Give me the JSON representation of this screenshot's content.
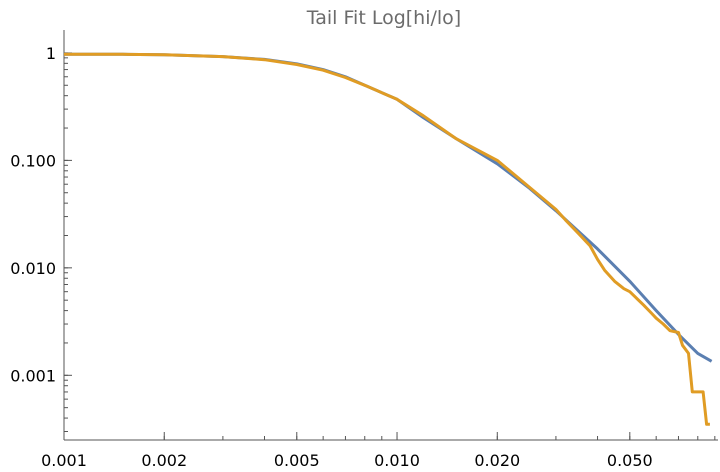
{
  "chart_data": {
    "type": "line",
    "title": "Tail Fit Log[hi/lo]",
    "xlabel": "",
    "ylabel": "",
    "x_scale": "log",
    "y_scale": "log",
    "xlim": [
      0.001,
      0.092
    ],
    "ylim": [
      0.00025,
      1.5
    ],
    "x_ticks": [
      {
        "value": 0.001,
        "label": "0.001"
      },
      {
        "value": 0.002,
        "label": "0.002"
      },
      {
        "value": 0.005,
        "label": "0.005"
      },
      {
        "value": 0.01,
        "label": "0.010"
      },
      {
        "value": 0.02,
        "label": "0.020"
      },
      {
        "value": 0.05,
        "label": "0.050"
      }
    ],
    "y_ticks": [
      {
        "value": 1,
        "label": "1"
      },
      {
        "value": 0.1,
        "label": "0.100"
      },
      {
        "value": 0.01,
        "label": "0.010"
      },
      {
        "value": 0.001,
        "label": "0.001"
      }
    ],
    "grid": false,
    "series": [
      {
        "color": "#5b7fb1",
        "x": [
          0.001,
          0.0015,
          0.002,
          0.003,
          0.004,
          0.005,
          0.006,
          0.007,
          0.008,
          0.01,
          0.012,
          0.015,
          0.02,
          0.025,
          0.03,
          0.04,
          0.05,
          0.06,
          0.07,
          0.08,
          0.088
        ],
        "y": [
          0.97,
          0.97,
          0.96,
          0.925,
          0.87,
          0.79,
          0.7,
          0.6,
          0.5,
          0.37,
          0.25,
          0.16,
          0.093,
          0.055,
          0.034,
          0.015,
          0.0075,
          0.004,
          0.0024,
          0.0016,
          0.00135
        ]
      },
      {
        "color": "#e09c24",
        "x": [
          0.001,
          0.0015,
          0.002,
          0.003,
          0.004,
          0.005,
          0.006,
          0.007,
          0.008,
          0.01,
          0.012,
          0.015,
          0.02,
          0.025,
          0.03,
          0.032,
          0.035,
          0.038,
          0.04,
          0.042,
          0.045,
          0.048,
          0.05,
          0.055,
          0.058,
          0.06,
          0.063,
          0.066,
          0.07,
          0.072,
          0.075,
          0.077,
          0.08,
          0.083,
          0.085,
          0.087
        ],
        "y": [
          0.97,
          0.97,
          0.96,
          0.925,
          0.865,
          0.78,
          0.69,
          0.59,
          0.5,
          0.37,
          0.26,
          0.16,
          0.1,
          0.056,
          0.035,
          0.028,
          0.021,
          0.016,
          0.012,
          0.0095,
          0.0075,
          0.0064,
          0.006,
          0.0045,
          0.0038,
          0.0034,
          0.003,
          0.0026,
          0.0025,
          0.0019,
          0.0016,
          0.0007,
          0.0007,
          0.0007,
          0.00035,
          0.00035
        ]
      }
    ]
  }
}
